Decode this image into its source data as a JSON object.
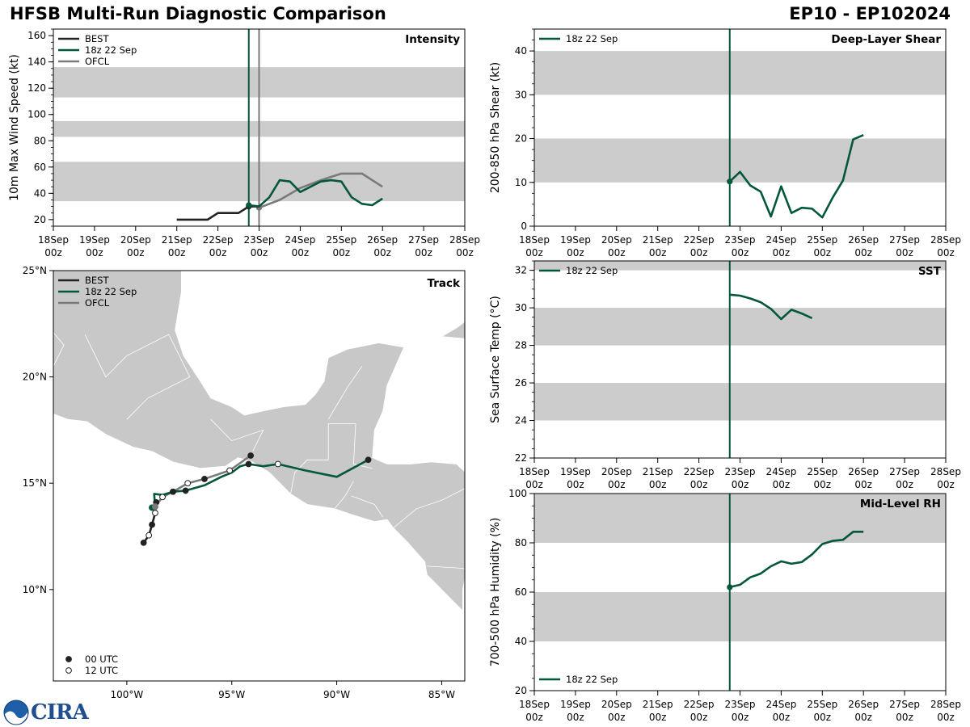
{
  "figure": {
    "title": "HFSB Multi-Run Diagnostic Comparison",
    "storm_id": "EP10 - EP102024",
    "logo_text": "CIRA",
    "colors": {
      "best": "#222222",
      "run": "#03573a",
      "ofcl": "#7a7a7a",
      "band": "#cccccc",
      "land": "#c8c8c8"
    }
  },
  "chart_data": [
    {
      "id": "intensity",
      "type": "line",
      "title": "Intensity",
      "ylabel": "10m Max Wind Speed (kt)",
      "xlabel": "",
      "x_tick_labels": [
        [
          "18Sep",
          "00z"
        ],
        [
          "19Sep",
          "00z"
        ],
        [
          "20Sep",
          "00z"
        ],
        [
          "21Sep",
          "00z"
        ],
        [
          "22Sep",
          "00z"
        ],
        [
          "23Sep",
          "00z"
        ],
        [
          "24Sep",
          "00z"
        ],
        [
          "25Sep",
          "00z"
        ],
        [
          "26Sep",
          "00z"
        ],
        [
          "27Sep",
          "00z"
        ],
        [
          "28Sep",
          "00z"
        ]
      ],
      "x_range_days": [
        0,
        10
      ],
      "ylim": [
        15,
        165
      ],
      "y_ticks": [
        20,
        40,
        60,
        80,
        100,
        120,
        140,
        160
      ],
      "bands": [
        [
          34,
          64
        ],
        [
          83,
          95
        ],
        [
          113,
          136
        ]
      ],
      "vlines": [
        {
          "x": 4.75,
          "series": "18z 22 Sep"
        },
        {
          "x": 5.0,
          "series": "OFCL"
        }
      ],
      "legend_position": "top-left",
      "series": [
        {
          "name": "BEST",
          "color": "#222222",
          "x": [
            3.0,
            3.25,
            3.5,
            3.75,
            4.0,
            4.25,
            4.5,
            4.75,
            5.0
          ],
          "y": [
            20,
            20,
            20,
            20,
            25,
            25,
            25,
            30,
            30
          ],
          "marker_at": [
            4.75
          ]
        },
        {
          "name": "18z 22 Sep",
          "color": "#03573a",
          "x": [
            4.75,
            5.0,
            5.25,
            5.5,
            5.75,
            6.0,
            6.25,
            6.5,
            6.75,
            7.0,
            7.25,
            7.5,
            7.75,
            8.0
          ],
          "y": [
            31,
            30,
            37,
            50,
            49,
            41,
            45,
            49,
            50,
            49,
            37,
            32,
            31,
            36
          ],
          "marker_at": [
            4.75
          ]
        },
        {
          "name": "OFCL",
          "color": "#7a7a7a",
          "x": [
            5.0,
            5.5,
            6.0,
            6.5,
            7.0,
            7.5,
            8.0
          ],
          "y": [
            29,
            35,
            44,
            50,
            55,
            55,
            45
          ],
          "marker_at": [
            5.0
          ]
        }
      ]
    },
    {
      "id": "shear",
      "type": "line",
      "title": "Deep-Layer Shear",
      "ylabel": "200-850 hPa Shear (kt)",
      "xlabel": "",
      "x_tick_labels": [
        [
          "18Sep",
          "00z"
        ],
        [
          "19Sep",
          "00z"
        ],
        [
          "20Sep",
          "00z"
        ],
        [
          "21Sep",
          "00z"
        ],
        [
          "22Sep",
          "00z"
        ],
        [
          "23Sep",
          "00z"
        ],
        [
          "24Sep",
          "00z"
        ],
        [
          "25Sep",
          "00z"
        ],
        [
          "26Sep",
          "00z"
        ],
        [
          "27Sep",
          "00z"
        ],
        [
          "28Sep",
          "00z"
        ]
      ],
      "x_range_days": [
        0,
        10
      ],
      "ylim": [
        0,
        45
      ],
      "y_ticks": [
        0,
        10,
        20,
        30,
        40
      ],
      "bands": [
        [
          10,
          20
        ],
        [
          30,
          40
        ]
      ],
      "vlines": [
        {
          "x": 4.75,
          "series": "18z 22 Sep"
        }
      ],
      "legend_position": "top-left",
      "series": [
        {
          "name": "18z 22 Sep",
          "color": "#03573a",
          "x": [
            4.75,
            5.0,
            5.25,
            5.5,
            5.75,
            6.0,
            6.25,
            6.5,
            6.75,
            7.0,
            7.25,
            7.5,
            7.75,
            8.0
          ],
          "y": [
            10.2,
            12.4,
            9.3,
            7.9,
            2.2,
            9.1,
            3.0,
            4.2,
            4.0,
            2.0,
            6.5,
            10.4,
            19.8,
            20.8
          ],
          "marker_at": [
            4.75
          ]
        }
      ]
    },
    {
      "id": "sst",
      "type": "line",
      "title": "SST",
      "ylabel": "Sea Surface Temp (°C)",
      "xlabel": "",
      "x_tick_labels": [
        [
          "18Sep",
          "00z"
        ],
        [
          "19Sep",
          "00z"
        ],
        [
          "20Sep",
          "00z"
        ],
        [
          "21Sep",
          "00z"
        ],
        [
          "22Sep",
          "00z"
        ],
        [
          "23Sep",
          "00z"
        ],
        [
          "24Sep",
          "00z"
        ],
        [
          "25Sep",
          "00z"
        ],
        [
          "26Sep",
          "00z"
        ],
        [
          "27Sep",
          "00z"
        ],
        [
          "28Sep",
          "00z"
        ]
      ],
      "x_range_days": [
        0,
        10
      ],
      "ylim": [
        22,
        32.5
      ],
      "y_ticks": [
        22,
        24,
        26,
        28,
        30,
        32
      ],
      "bands": [
        [
          24,
          26
        ],
        [
          28,
          30
        ],
        [
          32,
          32.5
        ]
      ],
      "vlines": [
        {
          "x": 4.75,
          "series": "18z 22 Sep"
        }
      ],
      "legend_position": "top-left",
      "series": [
        {
          "name": "18z 22 Sep",
          "color": "#03573a",
          "x": [
            4.75,
            5.0,
            5.25,
            5.5,
            5.75,
            6.0,
            6.25,
            6.5,
            6.75
          ],
          "y": [
            30.7,
            30.65,
            30.5,
            30.3,
            29.95,
            29.4,
            29.9,
            29.7,
            29.45
          ],
          "marker_at": []
        }
      ]
    },
    {
      "id": "rh",
      "type": "line",
      "title": "Mid-Level RH",
      "ylabel": "700-500 hPa Humidity (%)",
      "xlabel": "",
      "x_tick_labels": [
        [
          "18Sep",
          "00z"
        ],
        [
          "19Sep",
          "00z"
        ],
        [
          "20Sep",
          "00z"
        ],
        [
          "21Sep",
          "00z"
        ],
        [
          "22Sep",
          "00z"
        ],
        [
          "23Sep",
          "00z"
        ],
        [
          "24Sep",
          "00z"
        ],
        [
          "25Sep",
          "00z"
        ],
        [
          "26Sep",
          "00z"
        ],
        [
          "27Sep",
          "00z"
        ],
        [
          "28Sep",
          "00z"
        ]
      ],
      "x_range_days": [
        0,
        10
      ],
      "ylim": [
        20,
        100
      ],
      "y_ticks": [
        20,
        40,
        60,
        80,
        100
      ],
      "bands": [
        [
          40,
          60
        ],
        [
          80,
          100
        ]
      ],
      "vlines": [
        {
          "x": 4.75,
          "series": "18z 22 Sep"
        }
      ],
      "legend_position": "bottom-left",
      "series": [
        {
          "name": "18z 22 Sep",
          "color": "#03573a",
          "x": [
            4.75,
            5.0,
            5.25,
            5.5,
            5.75,
            6.0,
            6.25,
            6.5,
            6.75,
            7.0,
            7.25,
            7.5,
            7.75,
            8.0
          ],
          "y": [
            62,
            63,
            66,
            67.5,
            70.5,
            72.5,
            71.5,
            72.2,
            75.3,
            79.5,
            80.8,
            81.2,
            84.5,
            84.5
          ],
          "marker_at": [
            4.75
          ]
        }
      ]
    },
    {
      "id": "track",
      "type": "scatter",
      "title": "Track",
      "xlabel": "",
      "ylabel": "",
      "xlim": [
        -103.5,
        -83.9
      ],
      "ylim": [
        5.7,
        25.0
      ],
      "x_ticks": [
        -100,
        -95,
        -90,
        -85
      ],
      "x_tick_labels": [
        "100°W",
        "95°W",
        "90°W",
        "85°W"
      ],
      "y_ticks": [
        10,
        15,
        20,
        25
      ],
      "y_tick_labels": [
        "10°N",
        "15°N",
        "20°N",
        "25°N"
      ],
      "legend_position": "top-left",
      "marker_legend": [
        {
          "label": "00 UTC",
          "fill": "#222222"
        },
        {
          "label": "12 UTC",
          "fill": "#ffffff"
        }
      ],
      "series": [
        {
          "name": "BEST",
          "color": "#222222",
          "lon": [
            -99.2,
            -98.95,
            -98.8,
            -98.65,
            -98.6
          ],
          "lat": [
            12.2,
            12.55,
            13.05,
            13.6,
            14.1
          ],
          "markers": [
            "00",
            "12",
            "00",
            "12",
            "00"
          ]
        },
        {
          "name": "18z 22 Sep",
          "color": "#03573a",
          "lon": [
            -98.8,
            -98.65,
            -98.7,
            -98.3,
            -97.8,
            -97.2,
            -96.3,
            -95.5,
            -95.0,
            -94.6,
            -94.2,
            -93.5,
            -92.8,
            -91.5,
            -90.0,
            -88.5
          ],
          "lat": [
            13.85,
            13.85,
            14.5,
            14.45,
            14.6,
            14.65,
            14.9,
            15.3,
            15.5,
            15.8,
            15.9,
            15.8,
            15.9,
            15.6,
            15.3,
            16.1
          ],
          "markers": [
            "",
            "",
            "",
            "",
            "00",
            "00",
            "",
            "",
            "",
            "",
            "00",
            "",
            "12",
            "",
            "",
            "00"
          ]
        },
        {
          "name": "OFCL",
          "color": "#7a7a7a",
          "lon": [
            -98.65,
            -98.3,
            -97.8,
            -97.1,
            -96.3,
            -95.1,
            -94.1
          ],
          "lat": [
            13.9,
            14.35,
            14.6,
            15.0,
            15.2,
            15.6,
            16.3
          ],
          "markers": [
            "12",
            "12",
            "00",
            "12",
            "00",
            "12",
            "00"
          ]
        }
      ]
    }
  ]
}
